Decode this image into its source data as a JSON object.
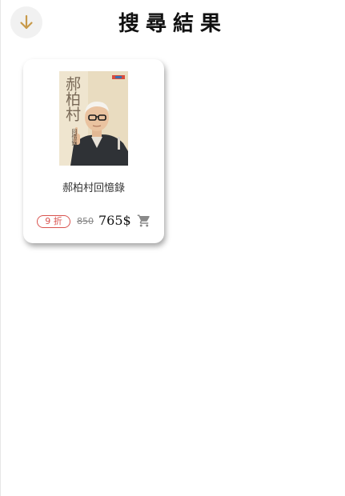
{
  "header": {
    "title": "搜尋結果",
    "back_icon": "arrow-down-icon",
    "accent_color": "#c89a4a"
  },
  "results": [
    {
      "title": "郝柏村回憶錄",
      "cover_text": "郝柏村",
      "cover_subtext": "回憶錄",
      "discount_label": "9 折",
      "original_price": "850",
      "sale_price": "765$",
      "cart_icon": "cart-icon",
      "discount_color": "#d9534f"
    }
  ]
}
